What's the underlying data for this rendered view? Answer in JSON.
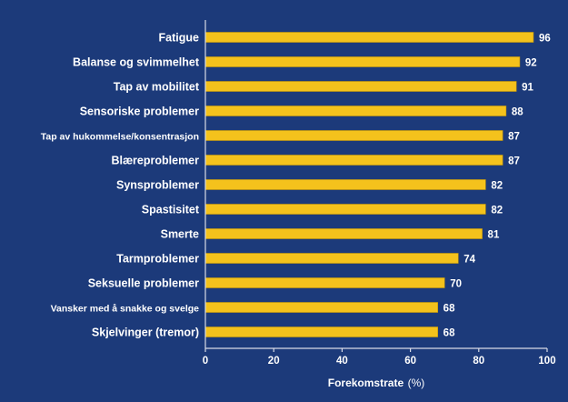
{
  "chart_data": {
    "type": "bar",
    "orientation": "horizontal",
    "categories": [
      "Fatigue",
      "Balanse og svimmelhet",
      "Tap av mobilitet",
      "Sensoriske problemer",
      "Tap av hukommelse/konsentrasjon",
      "Blæreproblemer",
      "Synsproblemer",
      "Spastisitet",
      "Smerte",
      "Tarmproblemer",
      "Seksuelle problemer",
      "Vansker med å snakke og svelge",
      "Skjelvinger (tremor)"
    ],
    "values": [
      96,
      92,
      91,
      88,
      87,
      87,
      82,
      82,
      81,
      74,
      70,
      68,
      68
    ],
    "title": "",
    "xlabel": "Forekomstrate",
    "xlabel_unit": "(%)",
    "ylabel": "",
    "xlim": [
      0,
      100
    ],
    "xticks": [
      0,
      20,
      40,
      60,
      80,
      100
    ],
    "grid": false,
    "colors": {
      "background": "#1c3a7a",
      "bar": "#f4c21c",
      "text": "#ffffff",
      "axis": "#d8dbe6"
    }
  }
}
